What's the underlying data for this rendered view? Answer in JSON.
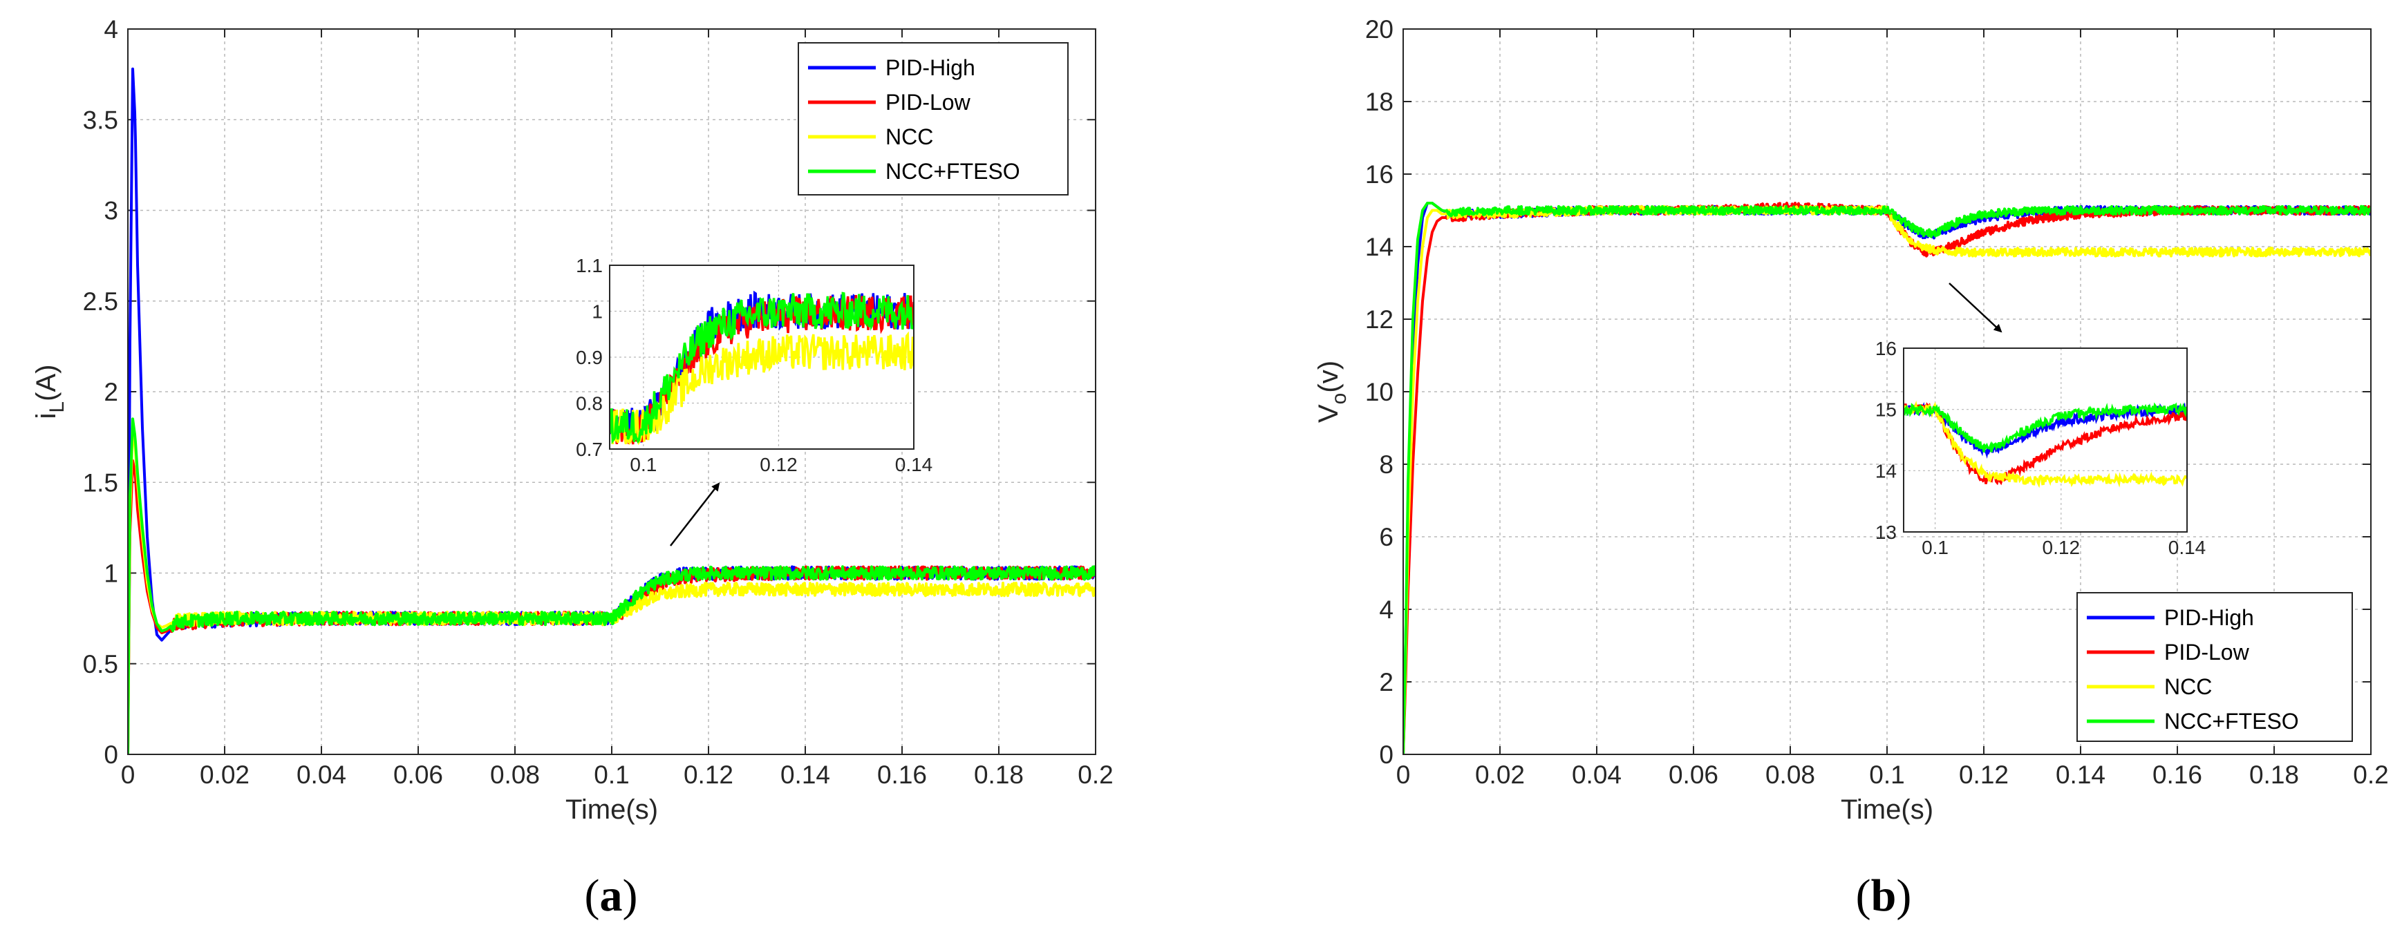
{
  "chart_data": [
    {
      "type": "line",
      "caption": "(a)",
      "caption_letter": "a",
      "xlabel": "Time(s)",
      "ylabel_main": "i",
      "ylabel_sub": "L",
      "ylabel_tail": "(A)",
      "xlim": [
        0,
        0.2
      ],
      "ylim": [
        0,
        4
      ],
      "xticks": [
        "0",
        "0.02",
        "0.04",
        "0.06",
        "0.08",
        "0.1",
        "0.12",
        "0.14",
        "0.16",
        "0.18",
        "0.2"
      ],
      "yticks": [
        "0",
        "0.5",
        "1",
        "1.5",
        "2",
        "2.5",
        "3",
        "3.5",
        "4"
      ],
      "grid": true,
      "legend_position": "top-right",
      "series": [
        {
          "name": "PID-High",
          "color": "#0000ff",
          "x": [
            0,
            0.0004,
            0.001,
            0.0015,
            0.002,
            0.003,
            0.004,
            0.005,
            0.006,
            0.007,
            0.008,
            0.01,
            0.02,
            0.04,
            0.06,
            0.08,
            0.095,
            0.1,
            0.102,
            0.105,
            0.108,
            0.11,
            0.115,
            0.12,
            0.14,
            0.16,
            0.18,
            0.2
          ],
          "y": [
            0,
            2.2,
            3.78,
            3.5,
            2.7,
            1.8,
            1.2,
            0.85,
            0.66,
            0.63,
            0.66,
            0.72,
            0.74,
            0.75,
            0.75,
            0.75,
            0.75,
            0.75,
            0.79,
            0.86,
            0.93,
            0.97,
            1.0,
            1.0,
            1.0,
            1.0,
            1.0,
            1.0
          ]
        },
        {
          "name": "PID-Low",
          "color": "#ff0000",
          "x": [
            0,
            0.0004,
            0.001,
            0.0015,
            0.002,
            0.003,
            0.004,
            0.005,
            0.006,
            0.007,
            0.008,
            0.01,
            0.02,
            0.04,
            0.06,
            0.08,
            0.095,
            0.1,
            0.102,
            0.105,
            0.108,
            0.11,
            0.115,
            0.12,
            0.14,
            0.16,
            0.18,
            0.2
          ],
          "y": [
            0,
            1.2,
            1.62,
            1.55,
            1.35,
            1.1,
            0.9,
            0.78,
            0.7,
            0.67,
            0.68,
            0.72,
            0.74,
            0.75,
            0.75,
            0.75,
            0.75,
            0.75,
            0.78,
            0.84,
            0.9,
            0.94,
            0.98,
            0.99,
            1.0,
            1.0,
            1.0,
            1.0
          ]
        },
        {
          "name": "NCC",
          "color": "#ffff00",
          "x": [
            0,
            0.0004,
            0.001,
            0.0015,
            0.002,
            0.003,
            0.004,
            0.005,
            0.006,
            0.007,
            0.008,
            0.01,
            0.02,
            0.04,
            0.06,
            0.08,
            0.095,
            0.1,
            0.102,
            0.105,
            0.108,
            0.11,
            0.115,
            0.12,
            0.14,
            0.16,
            0.18,
            0.2
          ],
          "y": [
            0,
            1.3,
            1.8,
            1.7,
            1.5,
            1.2,
            0.95,
            0.8,
            0.72,
            0.7,
            0.71,
            0.74,
            0.75,
            0.75,
            0.75,
            0.75,
            0.75,
            0.75,
            0.77,
            0.82,
            0.86,
            0.88,
            0.9,
            0.91,
            0.91,
            0.91,
            0.91,
            0.91
          ]
        },
        {
          "name": "NCC+FTESO",
          "color": "#00ff00",
          "x": [
            0,
            0.0004,
            0.001,
            0.0015,
            0.002,
            0.003,
            0.004,
            0.005,
            0.006,
            0.007,
            0.008,
            0.01,
            0.02,
            0.04,
            0.06,
            0.08,
            0.095,
            0.1,
            0.102,
            0.105,
            0.108,
            0.11,
            0.115,
            0.12,
            0.14,
            0.16,
            0.18,
            0.2
          ],
          "y": [
            0,
            1.4,
            1.85,
            1.75,
            1.55,
            1.25,
            1.0,
            0.82,
            0.72,
            0.68,
            0.69,
            0.73,
            0.75,
            0.75,
            0.75,
            0.75,
            0.75,
            0.75,
            0.8,
            0.87,
            0.93,
            0.96,
            0.99,
            1.0,
            1.0,
            1.0,
            1.0,
            1.0
          ]
        }
      ],
      "inset": {
        "xlim": [
          0.095,
          0.14
        ],
        "ylim": [
          0.7,
          1.1
        ],
        "xticks": [
          "0.1",
          "0.12",
          "0.14"
        ],
        "yticks": [
          "0.7",
          "0.8",
          "0.9",
          "1",
          "1.1"
        ]
      }
    },
    {
      "type": "line",
      "caption": "(b)",
      "caption_letter": "b",
      "xlabel": "Time(s)",
      "ylabel_main": "V",
      "ylabel_sub": "o",
      "ylabel_tail": "(v)",
      "xlim": [
        0,
        0.2
      ],
      "ylim": [
        0,
        20
      ],
      "xticks": [
        "0",
        "0.02",
        "0.04",
        "0.06",
        "0.08",
        "0.1",
        "0.12",
        "0.14",
        "0.16",
        "0.18",
        "0.2"
      ],
      "yticks": [
        "0",
        "2",
        "4",
        "6",
        "8",
        "10",
        "12",
        "14",
        "16",
        "18",
        "20"
      ],
      "grid": true,
      "legend_position": "bottom-right",
      "series": [
        {
          "name": "PID-High",
          "color": "#0000ff",
          "x": [
            0,
            0.0005,
            0.001,
            0.002,
            0.003,
            0.004,
            0.005,
            0.006,
            0.007,
            0.008,
            0.01,
            0.02,
            0.04,
            0.06,
            0.08,
            0.1,
            0.102,
            0.105,
            0.108,
            0.11,
            0.115,
            0.12,
            0.13,
            0.14,
            0.16,
            0.18,
            0.2
          ],
          "y": [
            0,
            3,
            7,
            11,
            13.5,
            14.8,
            15.2,
            15.2,
            15.1,
            15.0,
            14.9,
            14.9,
            15.0,
            15.0,
            15.0,
            15.0,
            14.8,
            14.5,
            14.3,
            14.35,
            14.6,
            14.8,
            14.95,
            15.0,
            15.0,
            15.0,
            15.0
          ]
        },
        {
          "name": "PID-Low",
          "color": "#ff0000",
          "x": [
            0,
            0.0005,
            0.001,
            0.002,
            0.003,
            0.004,
            0.005,
            0.006,
            0.007,
            0.008,
            0.01,
            0.02,
            0.04,
            0.06,
            0.08,
            0.1,
            0.102,
            0.105,
            0.108,
            0.11,
            0.115,
            0.12,
            0.13,
            0.14,
            0.16,
            0.18,
            0.2
          ],
          "y": [
            0,
            2,
            4.5,
            8,
            10.5,
            12.5,
            13.7,
            14.4,
            14.7,
            14.8,
            14.8,
            14.9,
            15.0,
            15.0,
            15.1,
            15.0,
            14.6,
            14.1,
            13.85,
            13.85,
            14.1,
            14.4,
            14.75,
            14.9,
            15.0,
            15.0,
            15.0
          ]
        },
        {
          "name": "NCC",
          "color": "#ffff00",
          "x": [
            0,
            0.0005,
            0.001,
            0.002,
            0.003,
            0.004,
            0.005,
            0.006,
            0.007,
            0.008,
            0.01,
            0.02,
            0.04,
            0.06,
            0.08,
            0.1,
            0.102,
            0.105,
            0.108,
            0.11,
            0.115,
            0.12,
            0.13,
            0.14,
            0.16,
            0.18,
            0.2
          ],
          "y": [
            0,
            2.5,
            6,
            10,
            12.5,
            14.0,
            14.8,
            15.0,
            15.0,
            14.9,
            14.9,
            14.9,
            15.0,
            15.0,
            15.0,
            15.0,
            14.6,
            14.15,
            13.95,
            13.9,
            13.85,
            13.85,
            13.85,
            13.85,
            13.85,
            13.85,
            13.85
          ]
        },
        {
          "name": "NCC+FTESO",
          "color": "#00ff00",
          "x": [
            0,
            0.0005,
            0.001,
            0.002,
            0.003,
            0.004,
            0.005,
            0.006,
            0.007,
            0.008,
            0.01,
            0.02,
            0.04,
            0.06,
            0.08,
            0.1,
            0.102,
            0.105,
            0.108,
            0.11,
            0.115,
            0.12,
            0.13,
            0.14,
            0.16,
            0.18,
            0.2
          ],
          "y": [
            0,
            3,
            7.5,
            12,
            14.2,
            15.0,
            15.2,
            15.2,
            15.1,
            15.0,
            14.95,
            15.0,
            15.0,
            15.0,
            15.0,
            15.0,
            14.85,
            14.55,
            14.35,
            14.4,
            14.7,
            14.9,
            15.0,
            15.0,
            15.0,
            15.0,
            15.0
          ]
        }
      ],
      "inset": {
        "xlim": [
          0.095,
          0.14
        ],
        "ylim": [
          13,
          16
        ],
        "xticks": [
          "0.1",
          "0.12",
          "0.14"
        ],
        "yticks": [
          "13",
          "14",
          "15",
          "16"
        ]
      }
    }
  ]
}
